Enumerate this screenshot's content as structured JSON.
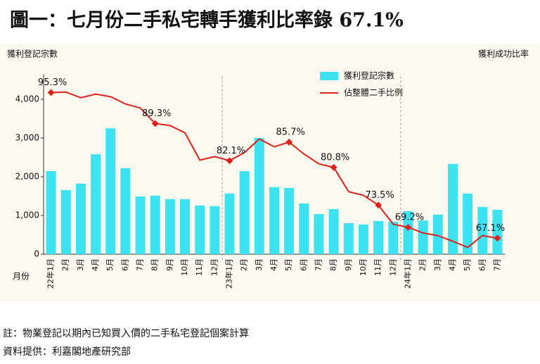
{
  "chart_data": {
    "type": "bar_line",
    "title": "圖一：七月份二手私宅轉手獲利比率錄 67.1%",
    "y_label": "獲利登記宗數",
    "y2_label": "獲利成功比率",
    "x_label": "月份",
    "categories": [
      "22年1月",
      "2月",
      "3月",
      "4月",
      "5月",
      "6月",
      "7月",
      "8月",
      "9月",
      "10月",
      "11月",
      "12月",
      "23年1月",
      "2月",
      "3月",
      "4月",
      "5月",
      "6月",
      "7月",
      "8月",
      "9月",
      "10月",
      "11月",
      "12月",
      "24年1月",
      "2月",
      "3月",
      "4月",
      "5月",
      "6月",
      "7月"
    ],
    "series": [
      {
        "name": "獲利登記宗數",
        "type": "bar",
        "color": "#3de3f2",
        "values": [
          2145,
          1655,
          1820,
          2580,
          3250,
          2220,
          1490,
          1510,
          1420,
          1420,
          1255,
          1240,
          1565,
          2145,
          3000,
          1730,
          1710,
          1310,
          1035,
          1165,
          800,
          765,
          855,
          835,
          1110,
          870,
          1020,
          2330,
          1565,
          1220,
          1145
        ]
      },
      {
        "name": "佔整體二手比例",
        "type": "line",
        "axis": "y2",
        "color": "#e0201b",
        "values": [
          95.3,
          95.4,
          94.3,
          95.0,
          94.5,
          93.1,
          92.3,
          89.3,
          88.9,
          87.5,
          82.2,
          82.9,
          82.1,
          83.7,
          86.3,
          84.8,
          85.7,
          83.4,
          81.5,
          80.8,
          76.1,
          75.4,
          73.5,
          69.8,
          69.2,
          68.1,
          67.6,
          66.5,
          65.3,
          67.6,
          67.1
        ],
        "value_labels": [
          "95.3%",
          null,
          null,
          null,
          null,
          null,
          null,
          "89.3%",
          null,
          null,
          null,
          null,
          "82.1%",
          null,
          null,
          null,
          "85.7%",
          null,
          null,
          "80.8%",
          null,
          null,
          "73.5%",
          null,
          "69.2%",
          null,
          null,
          null,
          null,
          null,
          "67.1%"
        ]
      }
    ],
    "ylim": [
      0,
      4500
    ],
    "yticks": [
      0,
      {
        "value": 1000,
        "label": "1,000"
      },
      {
        "value": 2000,
        "label": "2,000"
      },
      {
        "value": 3000,
        "label": "3,000"
      },
      {
        "value": 4000,
        "label": "4,000"
      }
    ],
    "y2lim": [
      64,
      97.75
    ],
    "legend": "top",
    "footnotes": [
      "註：物業登記以期內已知買入價的二手私宅登記個案計算",
      "資料提供：利嘉閣地產研究部"
    ]
  }
}
